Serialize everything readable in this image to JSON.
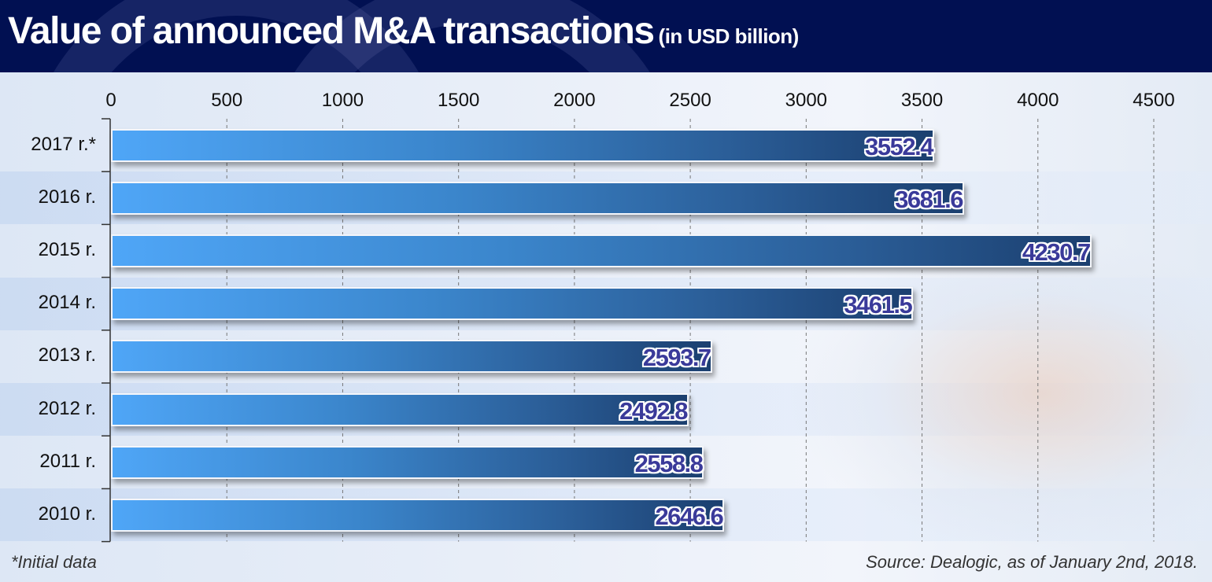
{
  "header": {
    "title": "Value of announced M&A transactions",
    "subtitle": "(in USD billion)"
  },
  "footer": {
    "footnote": "*Initial data",
    "source": "Source: Dealogic, as of January 2nd, 2018."
  },
  "colors": {
    "header_bg": "#011052",
    "bar_start": "#4fa6f7",
    "bar_end": "#1b3f6f",
    "value_label": "#3a3a9a"
  },
  "chart_data": {
    "type": "bar",
    "orientation": "horizontal",
    "title": "Value of announced M&A transactions (in USD billion)",
    "xlabel": "",
    "ylabel": "",
    "categories": [
      "2017 r.*",
      "2016 r.",
      "2015 r.",
      "2014 r.",
      "2013 r.",
      "2012 r.",
      "2011 r.",
      "2010 r."
    ],
    "values": [
      3552.4,
      3681.6,
      4230.7,
      3461.5,
      2593.7,
      2492.8,
      2558.8,
      2646.6
    ],
    "value_labels": [
      "3552.4",
      "3681.6",
      "4230.7",
      "3461.5",
      "2593.7",
      "2492.8",
      "2558.8",
      "2646.6"
    ],
    "xlim": [
      0,
      4500
    ],
    "x_ticks": [
      0,
      500,
      1000,
      1500,
      2000,
      2500,
      3000,
      3500,
      4000,
      4500
    ],
    "x_tick_labels": [
      "0",
      "500",
      "1000",
      "1500",
      "2000",
      "2500",
      "3000",
      "3500",
      "4000",
      "4500"
    ],
    "x_axis_position": "top",
    "grid": true,
    "grid_style": "dashed-vertical",
    "legend": "none"
  }
}
